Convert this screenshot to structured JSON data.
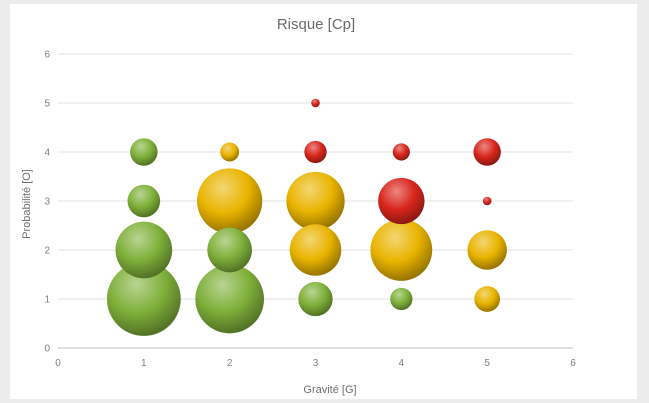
{
  "chart_data": {
    "type": "bubble",
    "title": "Risque [Cp]",
    "xlabel": "Gravité [G]",
    "ylabel": "Probabilité [O]",
    "xlim": [
      0,
      6
    ],
    "ylim": [
      0,
      6
    ],
    "x_ticks": [
      "0",
      "1",
      "2",
      "3",
      "4",
      "5",
      "6"
    ],
    "y_ticks": [
      "0",
      "1",
      "2",
      "3",
      "4",
      "5",
      "6"
    ],
    "grid": "horizontal",
    "legend": "none",
    "colors": {
      "green": "#7fb03a",
      "yellow": "#e9b400",
      "red": "#d8261c"
    },
    "points": [
      {
        "x": 1,
        "y": 1,
        "size": 8.6,
        "color": "green"
      },
      {
        "x": 1,
        "y": 2,
        "size": 6.6,
        "color": "green"
      },
      {
        "x": 1,
        "y": 3,
        "size": 3.8,
        "color": "green"
      },
      {
        "x": 1,
        "y": 4,
        "size": 3.2,
        "color": "green"
      },
      {
        "x": 2,
        "y": 1,
        "size": 8.0,
        "color": "green"
      },
      {
        "x": 2,
        "y": 2,
        "size": 5.2,
        "color": "green"
      },
      {
        "x": 2,
        "y": 3,
        "size": 7.6,
        "color": "yellow"
      },
      {
        "x": 2,
        "y": 4,
        "size": 2.2,
        "color": "yellow"
      },
      {
        "x": 3,
        "y": 1,
        "size": 4.0,
        "color": "green"
      },
      {
        "x": 3,
        "y": 2,
        "size": 6.0,
        "color": "yellow"
      },
      {
        "x": 3,
        "y": 3,
        "size": 6.8,
        "color": "yellow"
      },
      {
        "x": 3,
        "y": 4,
        "size": 2.6,
        "color": "red"
      },
      {
        "x": 3,
        "y": 5,
        "size": 1.0,
        "color": "red"
      },
      {
        "x": 4,
        "y": 1,
        "size": 2.6,
        "color": "green"
      },
      {
        "x": 4,
        "y": 2,
        "size": 7.2,
        "color": "yellow"
      },
      {
        "x": 4,
        "y": 3,
        "size": 5.4,
        "color": "red"
      },
      {
        "x": 4,
        "y": 4,
        "size": 2.0,
        "color": "red"
      },
      {
        "x": 5,
        "y": 1,
        "size": 3.0,
        "color": "yellow"
      },
      {
        "x": 5,
        "y": 2,
        "size": 4.6,
        "color": "yellow"
      },
      {
        "x": 5,
        "y": 3,
        "size": 1.0,
        "color": "red"
      },
      {
        "x": 5,
        "y": 4,
        "size": 3.2,
        "color": "red"
      }
    ]
  }
}
